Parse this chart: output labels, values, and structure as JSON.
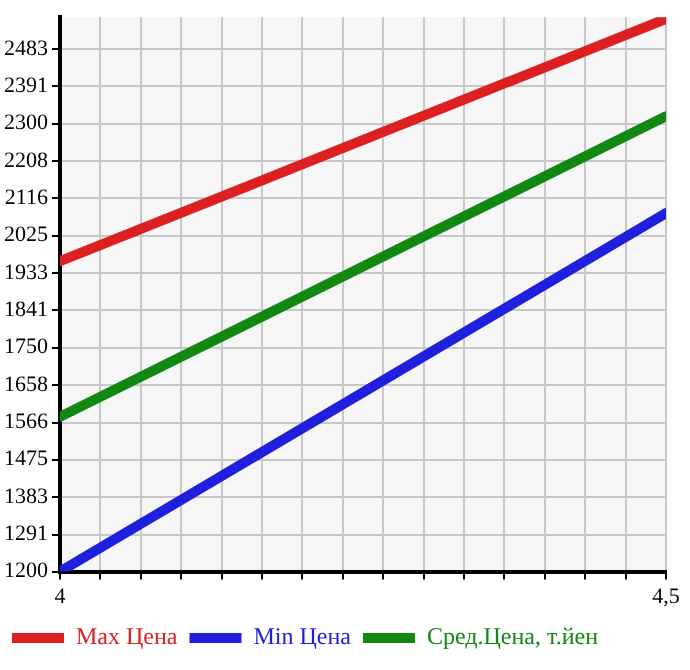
{
  "chart_data": {
    "type": "line",
    "x": [
      4,
      4.5
    ],
    "series": [
      {
        "name": "Max Цена",
        "color": "#dd1f1f",
        "values": [
          1962,
          2557
        ]
      },
      {
        "name": "Min Цена",
        "color": "#1f1fdd",
        "values": [
          1200,
          2080
        ]
      },
      {
        "name": "Сред.Цена, т.йен",
        "color": "#118811",
        "values": [
          1580,
          2318
        ]
      }
    ],
    "xlim": [
      4,
      4.5
    ],
    "xticks": [
      4,
      {
        "value": 4.0333,
        "label": null
      },
      {
        "value": 4.0667,
        "label": null
      },
      {
        "value": 4.1,
        "label": null
      },
      {
        "value": 4.1333,
        "label": null
      },
      {
        "value": 4.1667,
        "label": null
      },
      {
        "value": 4.2,
        "label": null
      },
      {
        "value": 4.2333,
        "label": null
      },
      {
        "value": 4.2667,
        "label": null
      },
      {
        "value": 4.3,
        "label": null
      },
      {
        "value": 4.3333,
        "label": null
      },
      {
        "value": 4.3667,
        "label": null
      },
      {
        "value": 4.4,
        "label": null
      },
      {
        "value": 4.4333,
        "label": null
      },
      {
        "value": 4.4667,
        "label": null
      },
      {
        "value": 4.5,
        "label": "4,5"
      }
    ],
    "ylim": [
      1200,
      2561
    ],
    "yticks": [
      1200,
      1291,
      {
        "value": 1383.3,
        "label": "1383"
      },
      {
        "value": 1474.9,
        "label": "1475"
      },
      1566,
      {
        "value": 1658.2,
        "label": "1658"
      },
      {
        "value": 1749.8,
        "label": "1750"
      },
      {
        "value": 1841.5,
        "label": "1841"
      },
      {
        "value": 1933.1,
        "label": "1933"
      },
      {
        "value": 2024.8,
        "label": "2025"
      },
      {
        "value": 2116.4,
        "label": "2116"
      },
      {
        "value": 2208,
        "label": "2208"
      },
      {
        "value": 2299.7,
        "label": "2300"
      },
      {
        "value": 2391.3,
        "label": "2391"
      },
      {
        "value": 2483,
        "label": "2483"
      }
    ],
    "grid": true,
    "legend": "bottom",
    "marker": "none",
    "line_style": "solid"
  }
}
